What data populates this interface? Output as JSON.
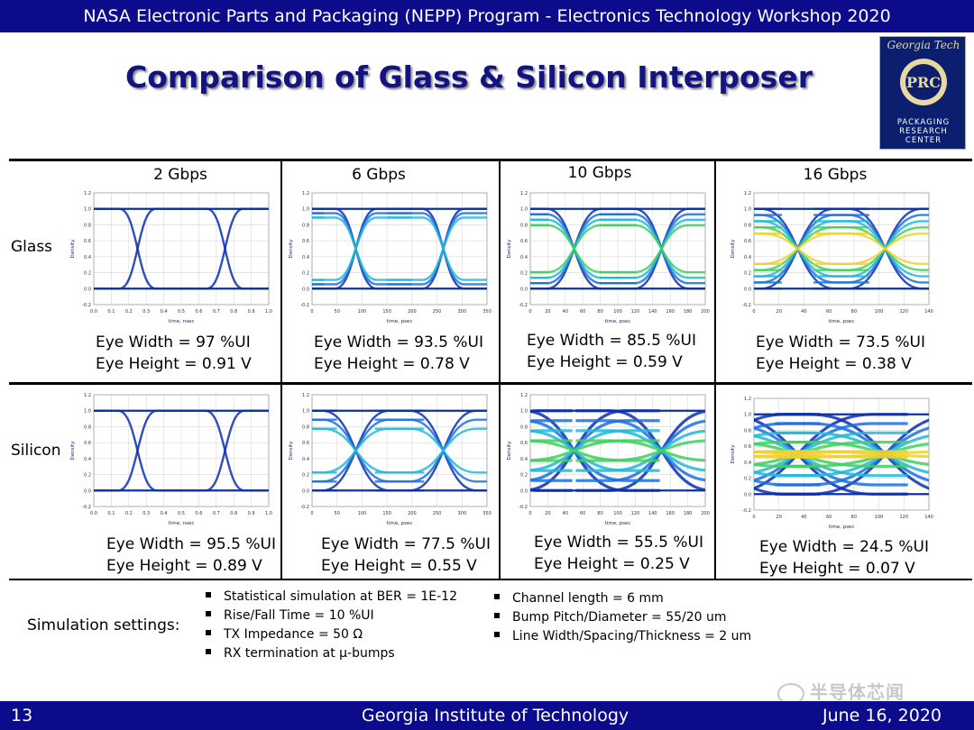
{
  "header_bar": "NASA Electronic Parts and Packaging (NEPP) Program - Electronics Technology Workshop 2020",
  "title": "Comparison of Glass & Silicon Interposer",
  "logo": {
    "top_text": "Georgia Tech",
    "lines": [
      "PACKAGING",
      "RESEARCH",
      "CENTER"
    ],
    "emblem_text": "PRC",
    "bg": "#0c1e6e"
  },
  "columns": [
    "2 Gbps",
    "6 Gbps",
    "10 Gbps",
    "16 Gbps"
  ],
  "rows": [
    {
      "label": "Glass",
      "cells": [
        {
          "width": "Eye Width = 97 %UI",
          "height": "Eye Height = 0.91 V"
        },
        {
          "width": "Eye Width = 93.5 %UI",
          "height": "Eye Height = 0.78 V"
        },
        {
          "width": "Eye Width = 85.5 %UI",
          "height": "Eye Height = 0.59 V"
        },
        {
          "width": "Eye Width = 73.5 %UI",
          "height": "Eye Height = 0.38 V"
        }
      ]
    },
    {
      "label": "Silicon",
      "cells": [
        {
          "width": "Eye Width = 95.5 %UI",
          "height": "Eye Height = 0.89 V"
        },
        {
          "width": "Eye Width = 77.5 %UI",
          "height": "Eye Height = 0.55 V"
        },
        {
          "width": "Eye Width = 55.5 %UI",
          "height": "Eye Height = 0.25 V"
        },
        {
          "width": "Eye Width = 24.5 %UI",
          "height": "Eye Height = 0.07 V"
        }
      ]
    }
  ],
  "plot_axis": {
    "ylabel": "Density",
    "yticks": [
      "1.2",
      "1.0",
      "0.8",
      "0.6",
      "0.4",
      "0.2",
      "0.0",
      "-0.2"
    ],
    "xticks_by_column": [
      [
        "0.0",
        "0.1",
        "0.2",
        "0.3",
        "0.4",
        "0.5",
        "0.6",
        "0.7",
        "0.8",
        "0.9",
        "1.0"
      ],
      [
        "0",
        "50",
        "100",
        "150",
        "200",
        "250",
        "300",
        "350"
      ],
      [
        "0",
        "20",
        "40",
        "60",
        "80",
        "100",
        "120",
        "140",
        "160",
        "180",
        "200"
      ],
      [
        "0",
        "20",
        "40",
        "60",
        "80",
        "100",
        "120",
        "140"
      ]
    ],
    "xlabel_by_column": [
      "time, nsec",
      "time, psec",
      "time, psec",
      "time, psec"
    ]
  },
  "chart_data": [
    {
      "type": "table",
      "title": "Glass",
      "categories": [
        "2 Gbps",
        "6 Gbps",
        "10 Gbps",
        "16 Gbps"
      ],
      "series": [
        {
          "name": "Eye Width (%UI)",
          "values": [
            97,
            93.5,
            85.5,
            73.5
          ]
        },
        {
          "name": "Eye Height (V)",
          "values": [
            0.91,
            0.78,
            0.59,
            0.38
          ]
        }
      ]
    },
    {
      "type": "table",
      "title": "Silicon",
      "categories": [
        "2 Gbps",
        "6 Gbps",
        "10 Gbps",
        "16 Gbps"
      ],
      "series": [
        {
          "name": "Eye Width (%UI)",
          "values": [
            95.5,
            77.5,
            55.5,
            24.5
          ]
        },
        {
          "name": "Eye Height (V)",
          "values": [
            0.89,
            0.55,
            0.25,
            0.07
          ]
        }
      ]
    }
  ],
  "settings": {
    "label": "Simulation settings:",
    "left": [
      "Statistical simulation at BER = 1E-12",
      "Rise/Fall Time = 10 %UI",
      "TX Impedance = 50 Ω",
      "RX termination at μ-bumps"
    ],
    "right": [
      "Channel length = 6 mm",
      "Bump Pitch/Diameter = 55/20 um",
      "Line Width/Spacing/Thickness = 2 um"
    ]
  },
  "watermark": "半导体芯闻",
  "footer": {
    "page": "13",
    "institution": "Georgia Institute of Technology",
    "date": "June 16, 2020"
  },
  "colors": {
    "bar": "#0b0b8c",
    "title": "#141480"
  }
}
